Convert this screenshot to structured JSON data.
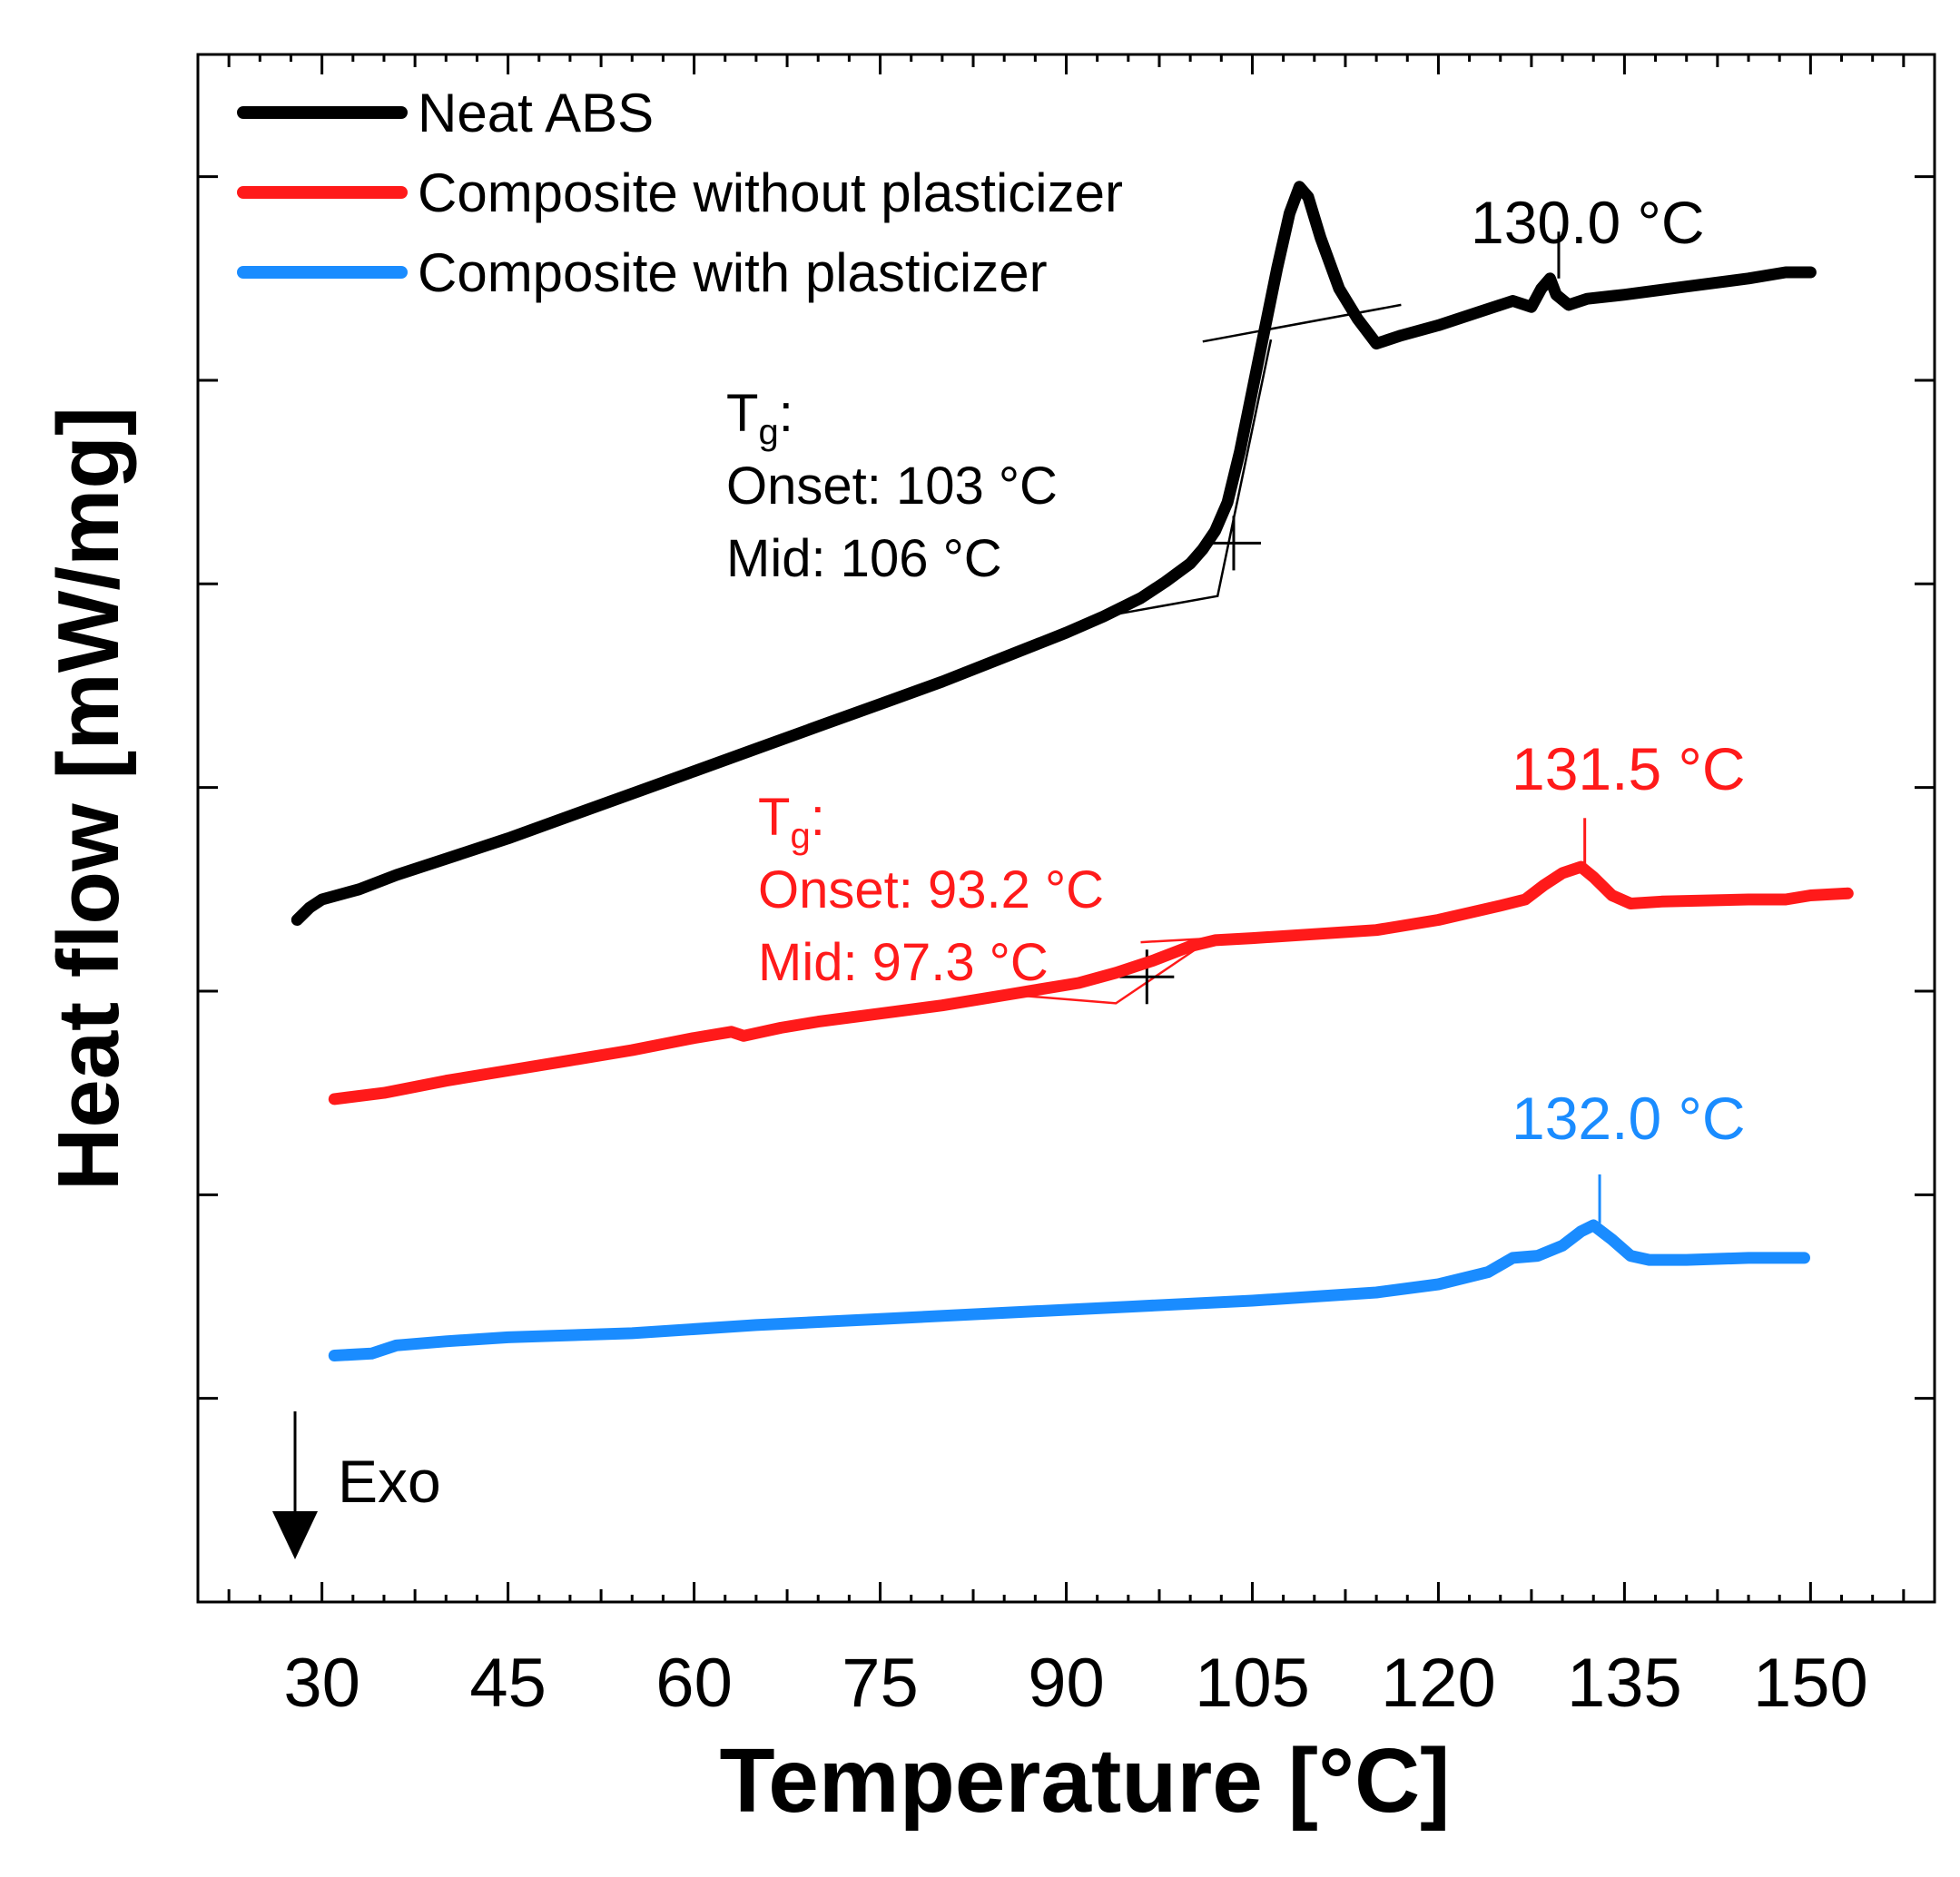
{
  "chart_data": {
    "type": "line",
    "title": "",
    "xlabel": "Temperature [°C]",
    "ylabel": "Heat flow [mW/mg]",
    "xlim": [
      20,
      160
    ],
    "ylim": [
      0,
      7.6
    ],
    "x_ticks": [
      30,
      45,
      60,
      75,
      90,
      105,
      120,
      135,
      150
    ],
    "x_tick_labels": [
      "30",
      "45",
      "60",
      "75",
      "90",
      "105",
      "120",
      "135",
      "150"
    ],
    "y_ticks": [
      1,
      2,
      3,
      4,
      5,
      6,
      7
    ],
    "y_tick_labels_shown": false,
    "legend_position": "top-left",
    "series": [
      {
        "name": "Neat ABS",
        "color": "#000000",
        "points": [
          [
            28,
            3.35
          ],
          [
            29,
            3.41
          ],
          [
            30,
            3.45
          ],
          [
            33,
            3.5
          ],
          [
            36,
            3.57
          ],
          [
            40,
            3.65
          ],
          [
            45,
            3.75
          ],
          [
            50,
            3.86
          ],
          [
            55,
            3.97
          ],
          [
            60,
            4.08
          ],
          [
            65,
            4.19
          ],
          [
            70,
            4.3
          ],
          [
            75,
            4.41
          ],
          [
            80,
            4.52
          ],
          [
            85,
            4.64
          ],
          [
            90,
            4.76
          ],
          [
            93,
            4.84
          ],
          [
            96,
            4.93
          ],
          [
            98,
            5.01
          ],
          [
            100,
            5.1
          ],
          [
            101,
            5.17
          ],
          [
            102,
            5.26
          ],
          [
            103,
            5.4
          ],
          [
            104,
            5.65
          ],
          [
            105,
            5.95
          ],
          [
            106,
            6.25
          ],
          [
            107,
            6.55
          ],
          [
            108,
            6.82
          ],
          [
            108.8,
            6.95
          ],
          [
            109.5,
            6.9
          ],
          [
            110.5,
            6.7
          ],
          [
            112,
            6.45
          ],
          [
            113.5,
            6.3
          ],
          [
            115,
            6.18
          ],
          [
            117,
            6.22
          ],
          [
            120,
            6.27
          ],
          [
            123,
            6.33
          ],
          [
            126,
            6.39
          ],
          [
            127.5,
            6.36
          ],
          [
            128.3,
            6.45
          ],
          [
            129,
            6.5
          ],
          [
            129.5,
            6.42
          ],
          [
            130.5,
            6.37
          ],
          [
            132,
            6.4
          ],
          [
            135,
            6.42
          ],
          [
            140,
            6.46
          ],
          [
            145,
            6.5
          ],
          [
            148,
            6.53
          ],
          [
            150,
            6.53
          ]
        ]
      },
      {
        "name": "Composite without plasticizer",
        "color": "#ff1a1a",
        "points": [
          [
            31,
            2.47
          ],
          [
            35,
            2.5
          ],
          [
            40,
            2.56
          ],
          [
            45,
            2.61
          ],
          [
            50,
            2.66
          ],
          [
            55,
            2.71
          ],
          [
            60,
            2.77
          ],
          [
            63,
            2.8
          ],
          [
            64,
            2.78
          ],
          [
            65.5,
            2.8
          ],
          [
            67,
            2.82
          ],
          [
            70,
            2.85
          ],
          [
            75,
            2.89
          ],
          [
            80,
            2.93
          ],
          [
            85,
            2.98
          ],
          [
            88,
            3.01
          ],
          [
            91,
            3.04
          ],
          [
            94,
            3.09
          ],
          [
            97,
            3.15
          ],
          [
            100,
            3.22
          ],
          [
            102,
            3.25
          ],
          [
            105,
            3.26
          ],
          [
            110,
            3.28
          ],
          [
            115,
            3.3
          ],
          [
            120,
            3.35
          ],
          [
            125,
            3.42
          ],
          [
            127,
            3.45
          ],
          [
            128.5,
            3.52
          ],
          [
            130,
            3.58
          ],
          [
            131.5,
            3.61
          ],
          [
            132.5,
            3.56
          ],
          [
            134,
            3.47
          ],
          [
            135.5,
            3.43
          ],
          [
            138,
            3.44
          ],
          [
            145,
            3.45
          ],
          [
            148,
            3.45
          ],
          [
            150,
            3.47
          ],
          [
            153,
            3.48
          ]
        ]
      },
      {
        "name": "Composite with plasticizer",
        "color": "#1a8cff",
        "points": [
          [
            31,
            1.21
          ],
          [
            34,
            1.22
          ],
          [
            36,
            1.26
          ],
          [
            40,
            1.28
          ],
          [
            45,
            1.3
          ],
          [
            55,
            1.32
          ],
          [
            65,
            1.36
          ],
          [
            75,
            1.39
          ],
          [
            85,
            1.42
          ],
          [
            95,
            1.45
          ],
          [
            105,
            1.48
          ],
          [
            110,
            1.5
          ],
          [
            115,
            1.52
          ],
          [
            120,
            1.56
          ],
          [
            124,
            1.62
          ],
          [
            126,
            1.69
          ],
          [
            128,
            1.7
          ],
          [
            130,
            1.75
          ],
          [
            131.5,
            1.82
          ],
          [
            132.5,
            1.85
          ],
          [
            134,
            1.78
          ],
          [
            135.5,
            1.7
          ],
          [
            137,
            1.68
          ],
          [
            140,
            1.68
          ],
          [
            145,
            1.69
          ],
          [
            149.5,
            1.69
          ]
        ]
      }
    ],
    "tg_construction_lines": [
      {
        "color": "#000000",
        "segments": [
          [
            [
              93,
              4.84
            ],
            [
              102.2,
              4.94
            ],
            [
              106.5,
              6.2
            ]
          ],
          [
            [
              101,
              6.19
            ],
            [
              117,
              6.37
            ]
          ]
        ],
        "cross_at": [
          103.5,
          5.2
        ]
      },
      {
        "color": "#ff1a1a",
        "segments": [
          [
            [
              86,
              2.98
            ],
            [
              94,
              2.94
            ],
            [
              102,
              3.27
            ]
          ],
          [
            [
              93,
              3.08
            ],
            [
              100,
              3.23
            ]
          ],
          [
            [
              96,
              3.24
            ],
            [
              105,
              3.27
            ]
          ]
        ],
        "cross_at": [
          96.5,
          3.07
        ]
      }
    ],
    "peak_markers": [
      {
        "color": "#000000",
        "x": 129.7,
        "y_from": 6.5,
        "y_to": 6.73
      },
      {
        "color": "#ff1a1a",
        "x": 131.8,
        "y_from": 3.62,
        "y_to": 3.85
      },
      {
        "color": "#1a8cff",
        "x": 133.0,
        "y_from": 1.86,
        "y_to": 2.1
      }
    ],
    "annotations": {
      "peak_black": "130.0 °C",
      "peak_red": "131.5 °C",
      "peak_blue": "132.0 °C",
      "tg_black_T": "T",
      "tg_black_sub": "g",
      "tg_black_colon": ":",
      "tg_black_onset": "Onset: 103 °C",
      "tg_black_mid": "Mid: 106 °C",
      "tg_red_T": "T",
      "tg_red_sub": "g",
      "tg_red_colon": ":",
      "tg_red_onset": "Onset: 93.2 °C",
      "tg_red_mid": "Mid: 97.3 °C",
      "exo": "Exo"
    }
  }
}
